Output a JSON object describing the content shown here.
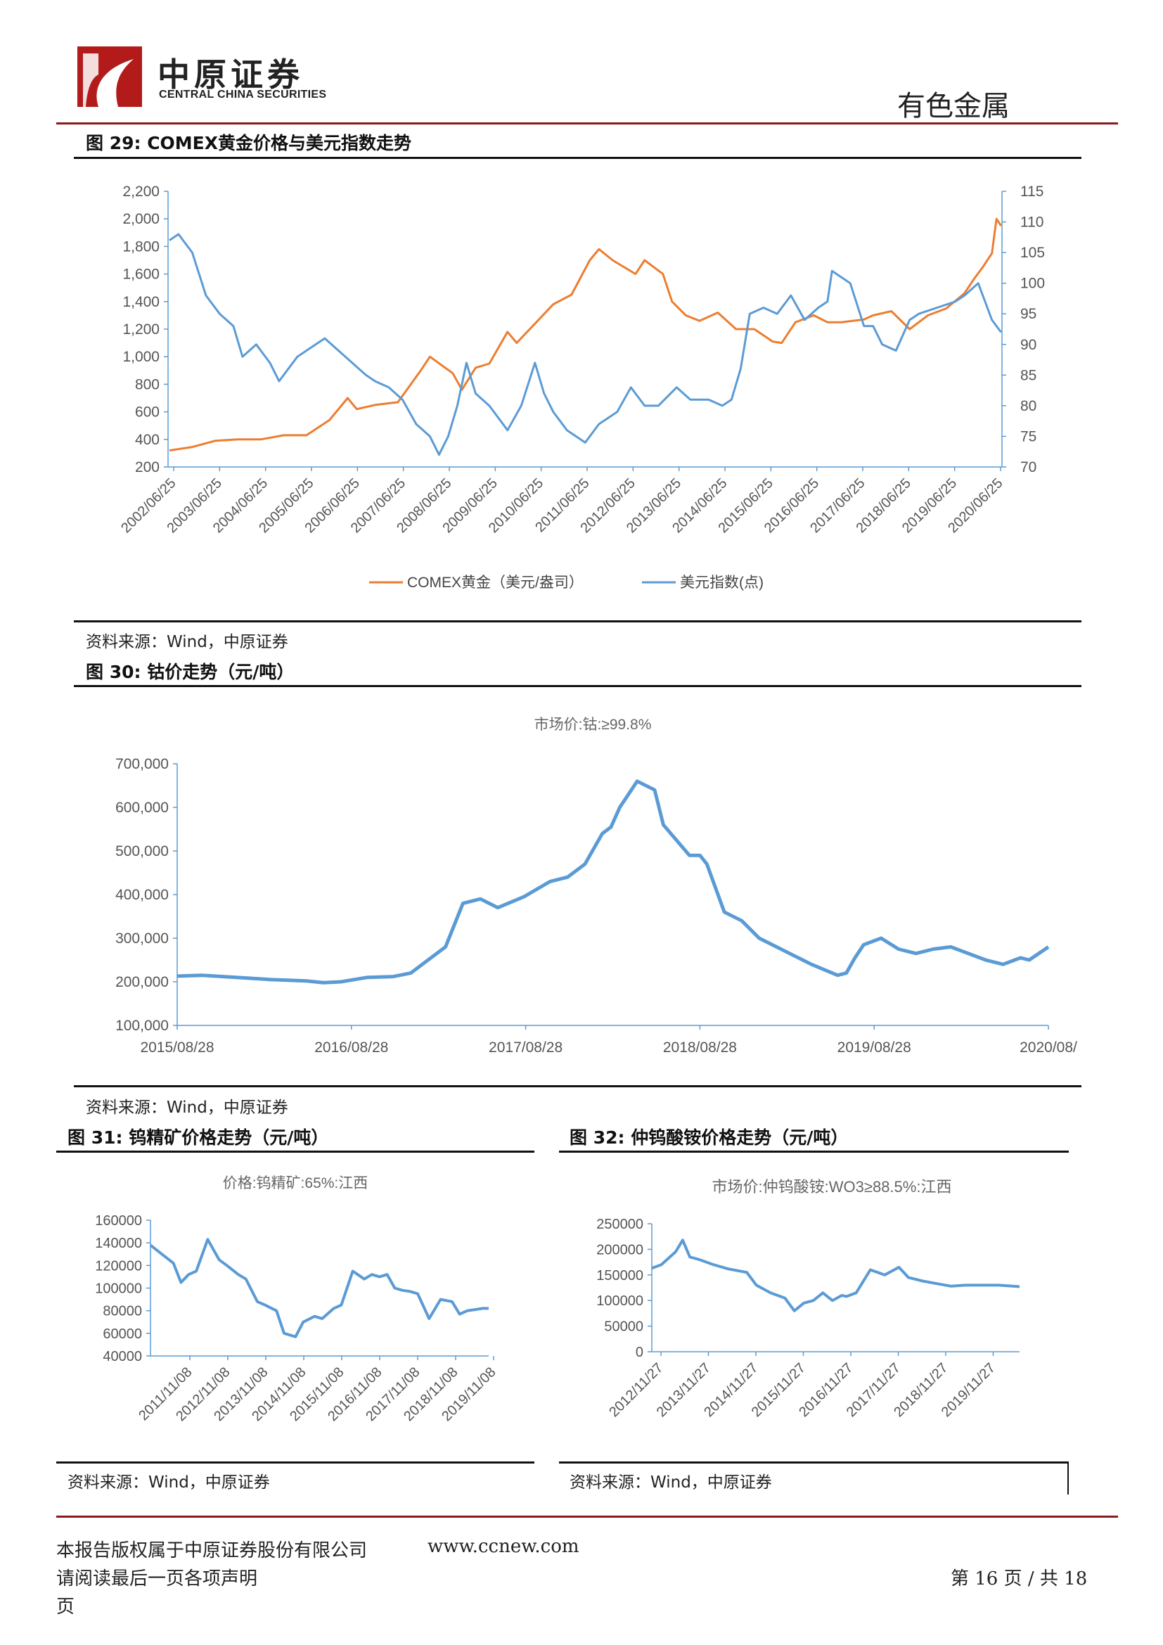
{
  "header": {
    "company_cn": "中原证券",
    "company_en": "CENTRAL CHINA SECURITIES",
    "sector": "有色金属"
  },
  "figures": {
    "fig29": {
      "title": "图 29:  COMEX黄金价格与美元指数走势",
      "source": "资料来源：Wind，中原证券"
    },
    "fig30": {
      "title": "图 30:  钴价走势（元/吨）",
      "source": "资料来源：Wind，中原证券"
    },
    "fig31": {
      "title": "图 31:  钨精矿价格走势（元/吨）",
      "source": "资料来源：Wind，中原证券"
    },
    "fig32": {
      "title": "图 32:  仲钨酸铵价格走势（元/吨）",
      "source": "资料来源：Wind，中原证券"
    }
  },
  "colors": {
    "orange": "#ed7d31",
    "blue": "#5b9bd5",
    "header_red": "#8b1a1a"
  },
  "chart_data": [
    {
      "id": "fig29",
      "type": "line",
      "title": "",
      "x_ticks": [
        "2002/06/25",
        "2003/06/25",
        "2004/06/25",
        "2005/06/25",
        "2006/06/25",
        "2007/06/25",
        "2008/06/25",
        "2009/06/25",
        "2010/06/25",
        "2011/06/25",
        "2012/06/25",
        "2013/06/25",
        "2014/06/25",
        "2015/06/25",
        "2016/06/25",
        "2017/06/25",
        "2018/06/25",
        "2019/06/25",
        "2020/06/25"
      ],
      "y_left": {
        "ticks": [
          "2,200",
          "2,000",
          "1,800",
          "1,600",
          "1,400",
          "1,200",
          "1,000",
          "800",
          "600",
          "400",
          "200"
        ],
        "ylim": [
          200,
          2200
        ]
      },
      "y_right": {
        "ticks": [
          "115",
          "110",
          "105",
          "100",
          "95",
          "90",
          "85",
          "80",
          "75",
          "70"
        ],
        "ylim": [
          70,
          115
        ]
      },
      "legend_position": "bottom",
      "series": [
        {
          "name": "COMEX黄金（美元/盎司）",
          "axis": "left",
          "color": "#ed7d31",
          "x": [
            2002.5,
            2003.0,
            2003.5,
            2004.0,
            2004.5,
            2005.0,
            2005.5,
            2006.0,
            2006.4,
            2006.6,
            2007.0,
            2007.5,
            2008.0,
            2008.2,
            2008.7,
            2008.9,
            2009.2,
            2009.5,
            2009.9,
            2010.1,
            2010.5,
            2010.9,
            2011.3,
            2011.7,
            2011.9,
            2012.2,
            2012.7,
            2012.9,
            2013.3,
            2013.5,
            2013.8,
            2014.1,
            2014.5,
            2014.9,
            2015.3,
            2015.7,
            2015.9,
            2016.2,
            2016.6,
            2016.9,
            2017.2,
            2017.7,
            2017.9,
            2018.3,
            2018.7,
            2019.1,
            2019.5,
            2019.9,
            2020.1,
            2020.3,
            2020.5,
            2020.6,
            2020.7
          ],
          "y": [
            320,
            345,
            390,
            400,
            400,
            430,
            430,
            540,
            700,
            620,
            650,
            670,
            900,
            1000,
            880,
            760,
            920,
            950,
            1180,
            1100,
            1240,
            1380,
            1450,
            1700,
            1780,
            1700,
            1600,
            1700,
            1600,
            1400,
            1300,
            1260,
            1320,
            1200,
            1200,
            1110,
            1100,
            1250,
            1300,
            1250,
            1250,
            1270,
            1300,
            1330,
            1200,
            1300,
            1350,
            1460,
            1560,
            1650,
            1750,
            2000,
            1950
          ]
        },
        {
          "name": "美元指数(点)",
          "axis": "right",
          "color": "#5b9bd5",
          "x": [
            2002.5,
            2002.7,
            2003.0,
            2003.3,
            2003.6,
            2003.9,
            2004.1,
            2004.4,
            2004.7,
            2004.9,
            2005.3,
            2005.7,
            2005.9,
            2006.2,
            2006.5,
            2006.8,
            2007.0,
            2007.3,
            2007.6,
            2007.9,
            2008.2,
            2008.4,
            2008.6,
            2008.8,
            2009.0,
            2009.2,
            2009.5,
            2009.9,
            2010.2,
            2010.5,
            2010.7,
            2010.9,
            2011.2,
            2011.6,
            2011.9,
            2012.3,
            2012.6,
            2012.9,
            2013.2,
            2013.6,
            2013.9,
            2014.3,
            2014.6,
            2014.8,
            2015.0,
            2015.2,
            2015.5,
            2015.8,
            2016.1,
            2016.4,
            2016.7,
            2016.9,
            2017.0,
            2017.4,
            2017.7,
            2017.9,
            2018.1,
            2018.4,
            2018.7,
            2018.9,
            2019.3,
            2019.7,
            2019.9,
            2020.2,
            2020.4,
            2020.5,
            2020.7
          ],
          "y": [
            107,
            108,
            105,
            98,
            95,
            93,
            88,
            90,
            87,
            84,
            88,
            90,
            91,
            89,
            87,
            85,
            84,
            83,
            81,
            77,
            75,
            72,
            75,
            80,
            87,
            82,
            80,
            76,
            80,
            87,
            82,
            79,
            76,
            74,
            77,
            79,
            83,
            80,
            80,
            83,
            81,
            81,
            80,
            81,
            86,
            95,
            96,
            95,
            98,
            94,
            96,
            97,
            102,
            100,
            93,
            93,
            90,
            89,
            94,
            95,
            96,
            97,
            98,
            100,
            96,
            94,
            92
          ]
        },
        {
          "name": "",
          "axis": "none",
          "color": "",
          "x": [],
          "y": []
        }
      ]
    },
    {
      "id": "fig30",
      "type": "line",
      "title": "市场价:钴:≥99.8%",
      "x_ticks": [
        "2015/08/28",
        "2016/08/28",
        "2017/08/28",
        "2018/08/28",
        "2019/08/28",
        "2020/08/"
      ],
      "y_ticks": [
        "700,000",
        "600,000",
        "500,000",
        "400,000",
        "300,000",
        "200,000",
        "100,000"
      ],
      "ylim": [
        100000,
        700000
      ],
      "xlim": [
        2015.66,
        2020.66
      ],
      "series": [
        {
          "name": "市场价:钴:≥99.8%",
          "color": "#5b9bd5",
          "x": [
            2015.66,
            2015.8,
            2016.0,
            2016.2,
            2016.4,
            2016.5,
            2016.6,
            2016.75,
            2016.9,
            2017.0,
            2017.1,
            2017.2,
            2017.3,
            2017.4,
            2017.5,
            2017.65,
            2017.8,
            2017.9,
            2018.0,
            2018.1,
            2018.15,
            2018.2,
            2018.3,
            2018.4,
            2018.45,
            2018.6,
            2018.66,
            2018.7,
            2018.8,
            2018.9,
            2019.0,
            2019.1,
            2019.2,
            2019.3,
            2019.45,
            2019.5,
            2019.55,
            2019.6,
            2019.7,
            2019.8,
            2019.9,
            2020.0,
            2020.1,
            2020.2,
            2020.3,
            2020.4,
            2020.5,
            2020.55,
            2020.66
          ],
          "y": [
            213000,
            215000,
            210000,
            205000,
            202000,
            198000,
            200000,
            210000,
            212000,
            220000,
            250000,
            280000,
            380000,
            390000,
            370000,
            395000,
            430000,
            440000,
            470000,
            540000,
            555000,
            600000,
            660000,
            640000,
            560000,
            490000,
            490000,
            470000,
            360000,
            340000,
            300000,
            280000,
            260000,
            240000,
            215000,
            220000,
            255000,
            285000,
            300000,
            275000,
            265000,
            275000,
            280000,
            265000,
            250000,
            240000,
            255000,
            250000,
            280000
          ]
        }
      ]
    },
    {
      "id": "fig31",
      "type": "line",
      "title": "价格:钨精矿:65%:江西",
      "x_ticks": [
        "2011/11/08",
        "2012/11/08",
        "2013/11/08",
        "2014/11/08",
        "2015/11/08",
        "2016/11/08",
        "2017/11/08",
        "2018/11/08",
        "2019/11/08"
      ],
      "y_ticks": [
        "160000",
        "140000",
        "120000",
        "100000",
        "80000",
        "60000",
        "40000"
      ],
      "ylim": [
        40000,
        160000
      ],
      "xlim": [
        2011.0,
        2019.86
      ],
      "series": [
        {
          "name": "价格:钨精矿:65%:江西",
          "color": "#5b9bd5",
          "x": [
            2011.0,
            2011.3,
            2011.6,
            2011.8,
            2012.0,
            2012.2,
            2012.5,
            2012.8,
            2013.0,
            2013.3,
            2013.5,
            2013.8,
            2014.0,
            2014.3,
            2014.5,
            2014.8,
            2015.0,
            2015.3,
            2015.5,
            2015.8,
            2016.0,
            2016.3,
            2016.6,
            2016.8,
            2017.0,
            2017.2,
            2017.4,
            2017.6,
            2017.8,
            2018.0,
            2018.3,
            2018.6,
            2018.9,
            2019.1,
            2019.3,
            2019.5,
            2019.7,
            2019.86
          ],
          "y": [
            138000,
            130000,
            122000,
            105000,
            112000,
            115000,
            143000,
            125000,
            120000,
            112000,
            108000,
            88000,
            85000,
            80000,
            60000,
            57000,
            70000,
            75000,
            73000,
            82000,
            85000,
            115000,
            108000,
            112000,
            110000,
            112000,
            100000,
            98000,
            97000,
            95000,
            73000,
            90000,
            88000,
            77000,
            80000,
            81000,
            82000,
            82000
          ]
        }
      ]
    },
    {
      "id": "fig32",
      "type": "line",
      "title": "市场价:仲钨酸铵:WO3≥88.5%:江西",
      "x_ticks": [
        "2012/11/27",
        "2013/11/27",
        "2014/11/27",
        "2015/11/27",
        "2016/11/27",
        "2017/11/27",
        "2018/11/27",
        "2019/11/27"
      ],
      "y_ticks": [
        "250000",
        "200000",
        "150000",
        "100000",
        "50000",
        "0"
      ],
      "ylim": [
        0,
        250000
      ],
      "xlim": [
        2012.0,
        2019.74
      ],
      "series": [
        {
          "name": "市场价:仲钨酸铵:WO3≥88.5%:江西",
          "color": "#5b9bd5",
          "x": [
            2012.0,
            2012.2,
            2012.5,
            2012.65,
            2012.8,
            2013.0,
            2013.3,
            2013.6,
            2014.0,
            2014.2,
            2014.5,
            2014.8,
            2015.0,
            2015.2,
            2015.4,
            2015.6,
            2015.8,
            2016.0,
            2016.1,
            2016.3,
            2016.6,
            2016.9,
            2017.0,
            2017.2,
            2017.4,
            2017.7,
            2018.0,
            2018.3,
            2018.6,
            2019.0,
            2019.3,
            2019.6,
            2019.74
          ],
          "y": [
            163000,
            170000,
            195000,
            218000,
            185000,
            180000,
            170000,
            162000,
            155000,
            130000,
            115000,
            105000,
            80000,
            95000,
            100000,
            115000,
            100000,
            110000,
            108000,
            115000,
            160000,
            150000,
            155000,
            165000,
            145000,
            138000,
            133000,
            128000,
            130000,
            130000,
            130000,
            128000,
            127000
          ]
        }
      ]
    }
  ],
  "footer": {
    "copyright": "本报告版权属于中原证券股份有限公司",
    "website": "www.ccnew.com",
    "read_notice": "请阅读最后一页各项声明",
    "page_label": "第 16 页 / 共 18",
    "page_suffix": "页"
  }
}
